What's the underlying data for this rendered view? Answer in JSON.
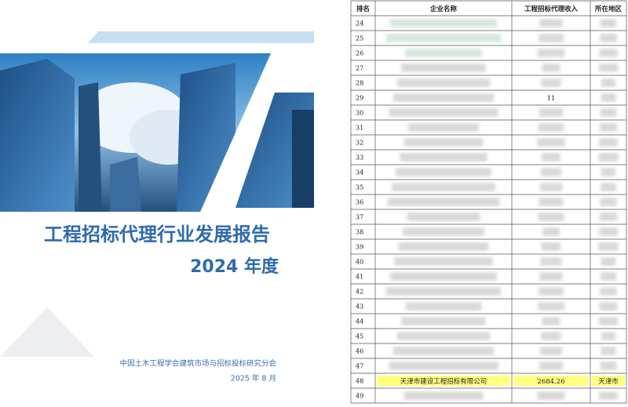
{
  "cover": {
    "title": "工程招标代理行业发展报告",
    "year": "2024 年度",
    "publisher": "中国土木工程学会建筑市场与招标投标研究分会",
    "date": "2025 年 8 月"
  },
  "table": {
    "header": [
      "排名",
      "企业名称",
      "工程招标代理收入",
      "所在地区"
    ],
    "rows": [
      {
        "rank": 24
      },
      {
        "rank": 25
      },
      {
        "rank": 26
      },
      {
        "rank": 27
      },
      {
        "rank": 28
      },
      {
        "rank": 29,
        "income": "11"
      },
      {
        "rank": 30
      },
      {
        "rank": 31
      },
      {
        "rank": 32
      },
      {
        "rank": 33
      },
      {
        "rank": 34
      },
      {
        "rank": 35
      },
      {
        "rank": 36
      },
      {
        "rank": 37
      },
      {
        "rank": 38
      },
      {
        "rank": 39
      },
      {
        "rank": 40
      },
      {
        "rank": 41
      },
      {
        "rank": 42
      },
      {
        "rank": 43
      },
      {
        "rank": 44
      },
      {
        "rank": 45
      },
      {
        "rank": 46
      },
      {
        "rank": 47
      },
      {
        "rank": 48,
        "name": "天津市建设工程招标有限公司",
        "income": "2684.26",
        "region": "天津市",
        "highlight": true
      },
      {
        "rank": 49
      }
    ]
  }
}
